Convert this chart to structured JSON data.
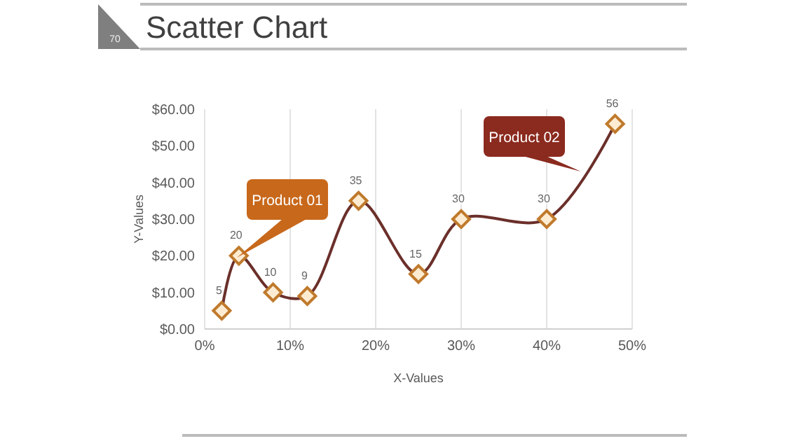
{
  "chart_data": {
    "type": "line",
    "title": "Scatter Chart",
    "xlabel": "X-Values",
    "ylabel": "Y-Values",
    "x": [
      2,
      4,
      8,
      12,
      18,
      25,
      30,
      40,
      48
    ],
    "series": [
      {
        "color": "#6b2f2a",
        "values": [
          5,
          20,
          10,
          9,
          35,
          15,
          30,
          30,
          56
        ]
      }
    ],
    "xlim": [
      0,
      50
    ],
    "xticks": [
      {
        "value": 0,
        "label": "0%"
      },
      {
        "value": 10,
        "label": "10%"
      },
      {
        "value": 20,
        "label": "20%"
      },
      {
        "value": 30,
        "label": "30%"
      },
      {
        "value": 40,
        "label": "40%"
      },
      {
        "value": 50,
        "label": "50%"
      }
    ],
    "ylim": [
      0,
      60
    ],
    "yticks": [
      {
        "value": 0,
        "label": "$0.00"
      },
      {
        "value": 10,
        "label": "$10.00"
      },
      {
        "value": 20,
        "label": "$20.00"
      },
      {
        "value": 30,
        "label": "$30.00"
      },
      {
        "value": 40,
        "label": "$40.00"
      },
      {
        "value": 50,
        "label": "$50.00"
      },
      {
        "value": 60,
        "label": "$60.00"
      }
    ],
    "grid": "x",
    "marker": "diamond",
    "line_style": "solid",
    "data_labels": true,
    "annotations": [
      "70",
      "Product 01",
      {
        "text": "Product 02",
        "x": 44,
        "y": 43
      }
    ]
  }
}
